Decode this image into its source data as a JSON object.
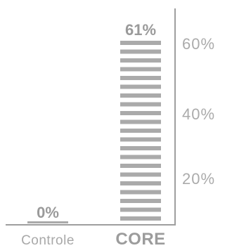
{
  "chart_data": {
    "type": "bar",
    "categories": [
      "Controle",
      "CORE"
    ],
    "values": [
      0,
      61
    ],
    "value_labels": [
      "0%",
      "61%"
    ],
    "ylim": [
      0,
      70
    ],
    "yticks": [
      20,
      40,
      60
    ],
    "ytick_labels": [
      "20%",
      "40%",
      "60%"
    ],
    "y_axis_side": "right",
    "bar_style": "striped",
    "highlight_category": "CORE",
    "grid": false,
    "colors": {
      "bar": "#aaaaaa",
      "text": "#a8a8a8",
      "axis": "#9e9e9e"
    }
  }
}
